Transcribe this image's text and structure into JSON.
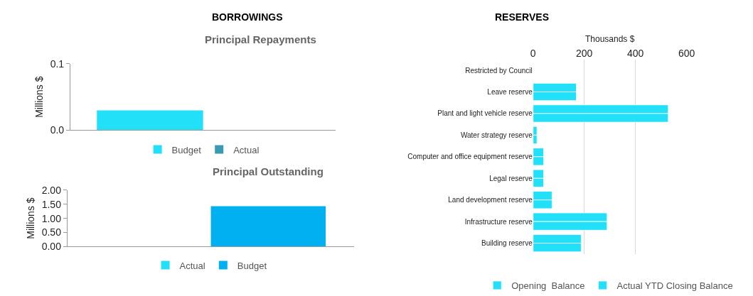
{
  "chart_data": [
    {
      "type": "bar",
      "title": "Principal Repayments",
      "ylabel": "Millions $",
      "annotations": [
        "BORROWINGS"
      ],
      "categories": [
        null
      ],
      "series": [
        {
          "name": "Budget",
          "color": "#22e0f8",
          "values": [
            0.03
          ]
        },
        {
          "name": "Actual",
          "color": "#3a9ab2",
          "values": [
            0
          ]
        }
      ],
      "ylim": [
        0,
        0.1
      ],
      "yticks": [
        {
          "value": 0,
          "label": "0.0"
        },
        {
          "value": 0.1,
          "label": "0.1"
        }
      ],
      "grid": false,
      "legend": "bottom",
      "tick_labels": "y"
    },
    {
      "type": "bar",
      "title": "Principal Outstanding",
      "ylabel": "Millions $",
      "categories": [
        null
      ],
      "series": [
        {
          "name": "Actual",
          "color": "#22e0f8",
          "values": [
            0
          ]
        },
        {
          "name": "Budget",
          "color": "#00b0f0",
          "values": [
            1.43
          ]
        }
      ],
      "ylim": [
        0,
        2
      ],
      "yticks": [
        {
          "value": 0,
          "label": "0.00"
        },
        {
          "value": 0.5,
          "label": "0.50"
        },
        {
          "value": 1,
          "label": "1.00"
        },
        {
          "value": 1.5,
          "label": "1.50"
        },
        {
          "value": 2,
          "label": "2.00"
        }
      ],
      "grid": false,
      "legend": "bottom",
      "tick_labels": "y"
    },
    {
      "type": "bar",
      "title": "RESERVES",
      "xlabel": "Thousands $",
      "orientation": "horizontal",
      "categories": [
        "Restricted by Council",
        "Leave reserve",
        "Plant and light vehicle reserve",
        "Water strategy reserve",
        "Computer and office equipment reserve",
        "Legal reserve",
        "Land development reserve",
        "Infrastructure reserve",
        "Building reserve"
      ],
      "series": [
        {
          "name": "Opening  Balance",
          "color": "#22e0f8",
          "values": [
            null,
            169,
            528,
            15,
            41,
            41,
            74,
            289,
            188
          ]
        },
        {
          "name": "Actual YTD Closing Balance",
          "color": "#22e0f8",
          "values": [
            null,
            169,
            528,
            15,
            41,
            41,
            74,
            289,
            188
          ]
        }
      ],
      "xlim": [
        0,
        600
      ],
      "xticks": [
        0,
        200,
        400,
        600
      ],
      "grid": "x",
      "legend": "bottom"
    }
  ]
}
